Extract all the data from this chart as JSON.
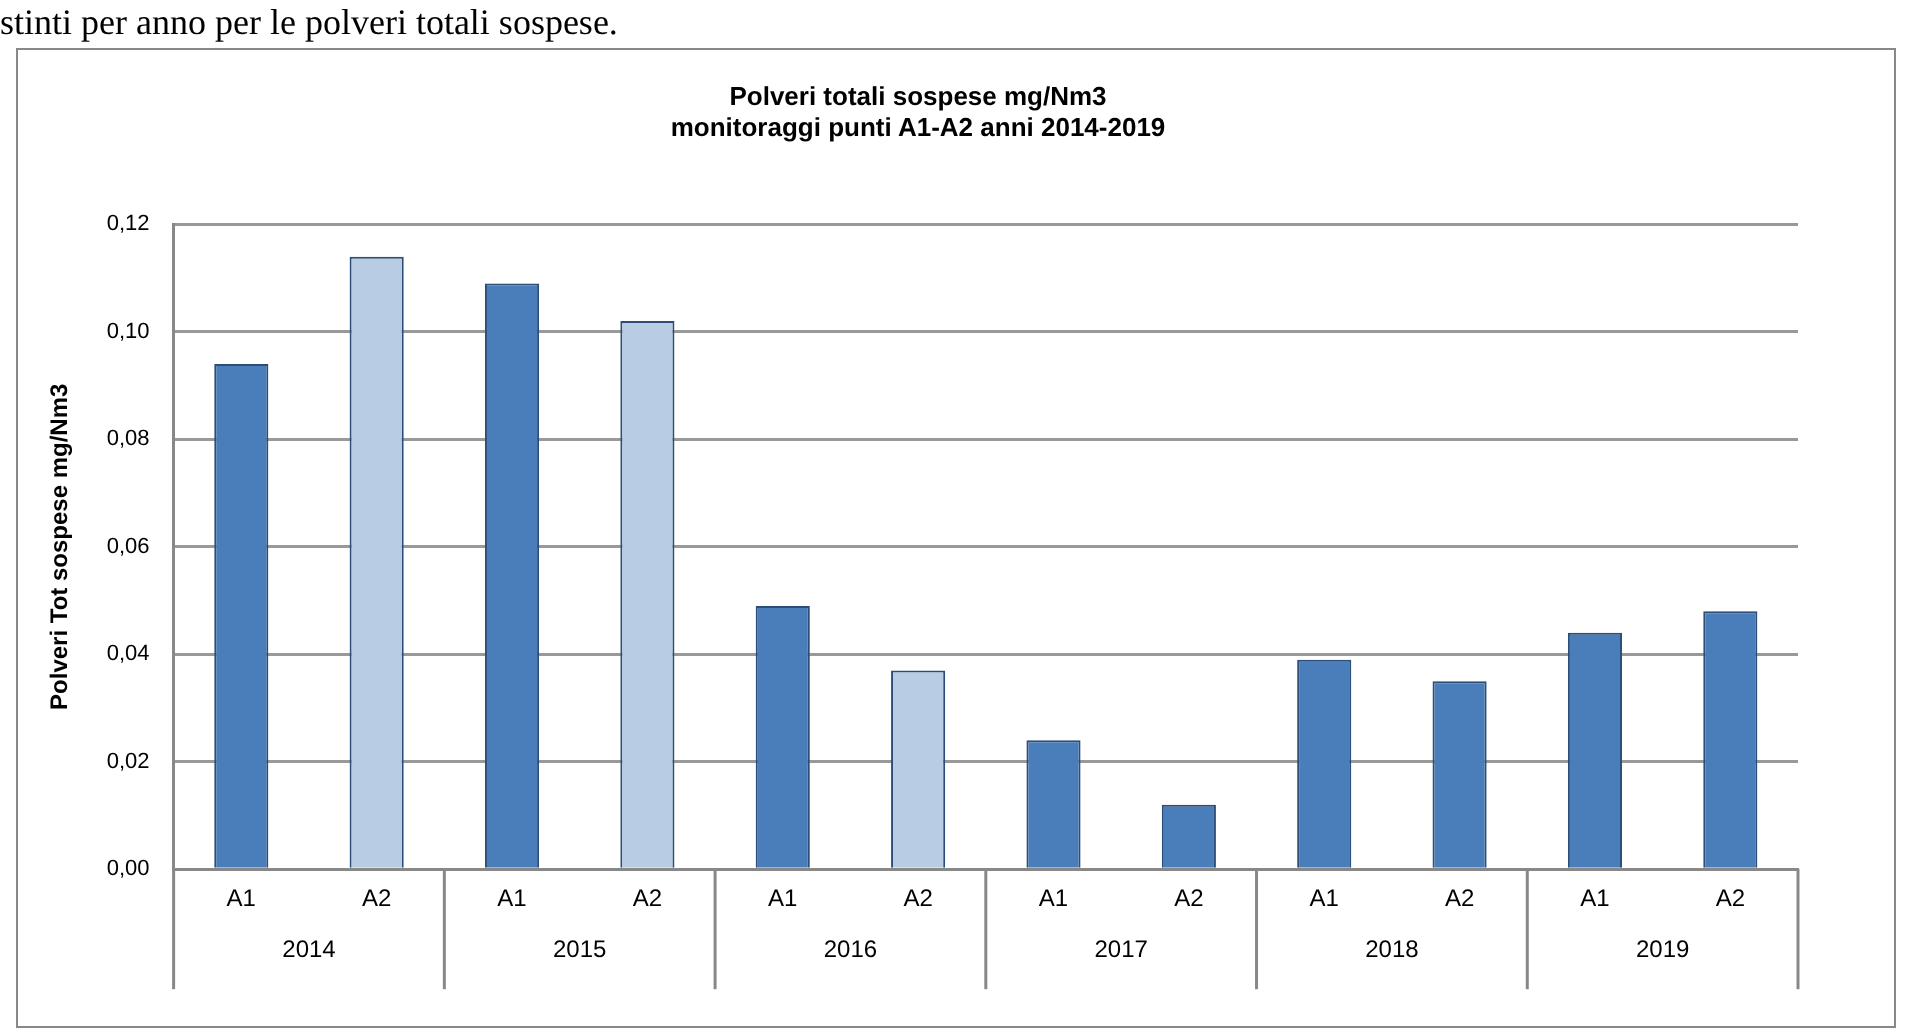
{
  "chart_data": {
    "type": "bar",
    "title": "Polveri totali sospese mg/Nm3",
    "subtitle": "monitoraggi punti A1-A2 anni 2014-2019",
    "ylabel": "Polveri Tot sospese mg/Nm3",
    "categories": [
      "A1",
      "A2",
      "A1",
      "A2",
      "A1",
      "A2",
      "A1",
      "A2",
      "A1",
      "A2",
      "A1",
      "A2"
    ],
    "values": [
      0.094,
      0.114,
      0.109,
      0.102,
      0.049,
      0.037,
      0.024,
      0.012,
      0.039,
      0.035,
      0.044,
      0.048
    ],
    "colors": [
      "#4a7ebb",
      "#b8cce4",
      "#4a7ebb",
      "#b8cce4",
      "#4a7ebb",
      "#b8cce4",
      "#4a7ebb",
      "#4a7ebb",
      "#4a7ebb",
      "#4a7ebb",
      "#4a7ebb",
      "#4a7ebb"
    ],
    "ylim": [
      0,
      0.12
    ],
    "yticks": [
      {
        "value": 0,
        "label": "0,00"
      },
      {
        "value": 0.02,
        "label": "0,02"
      },
      {
        "value": 0.04,
        "label": "0,04"
      },
      {
        "value": 0.06,
        "label": "0,06"
      },
      {
        "value": 0.08,
        "label": "0,08"
      },
      {
        "value": 0.1,
        "label": "0,10"
      },
      {
        "value": 0.12,
        "label": "0,12"
      }
    ],
    "grid": "y",
    "legend": false,
    "annotations": [
      "stinti per anno per le polveri totali sospese.",
      "2014",
      "2015",
      "2016",
      "2017",
      "2018",
      "2019"
    ]
  }
}
